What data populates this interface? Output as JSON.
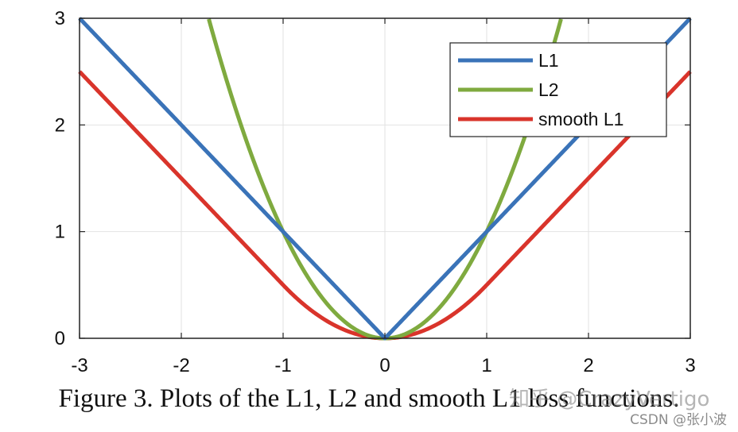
{
  "chart_data": {
    "type": "line",
    "xlim": [
      -3,
      3
    ],
    "ylim": [
      0,
      3
    ],
    "xticks": [
      "-3",
      "-2",
      "-1",
      "0",
      "1",
      "2",
      "3"
    ],
    "yticks": [
      "0",
      "1",
      "2",
      "3"
    ],
    "grid": true,
    "legend_position": "top-right",
    "series": [
      {
        "name": "L1",
        "color": "#3a73b8",
        "function": "abs(x)",
        "x": [
          -3,
          -2,
          -1,
          0,
          1,
          2,
          3
        ],
        "y": [
          3,
          2,
          1,
          0,
          1,
          2,
          3
        ]
      },
      {
        "name": "L2",
        "color": "#7faa3f",
        "function": "x^2",
        "x": [
          -1.73,
          -1.5,
          -1,
          -0.5,
          0,
          0.5,
          1,
          1.5,
          1.73
        ],
        "y": [
          3,
          2.25,
          1,
          0.25,
          0,
          0.25,
          1,
          2.25,
          3
        ]
      },
      {
        "name": "smooth L1",
        "color": "#d9342b",
        "function": "0.5*x^2 if |x|<1 else |x|-0.5",
        "x": [
          -3,
          -2,
          -1,
          -0.5,
          0,
          0.5,
          1,
          2,
          3
        ],
        "y": [
          2.5,
          1.5,
          0.5,
          0.125,
          0,
          0.125,
          0.5,
          1.5,
          2.5
        ]
      }
    ]
  },
  "caption": "Figure 3. Plots of the L1, L2 and smooth L1 loss functions.",
  "watermarks": {
    "zhihu": "知乎 @CrazyVertigo",
    "csdn": "CSDN @张小波"
  }
}
